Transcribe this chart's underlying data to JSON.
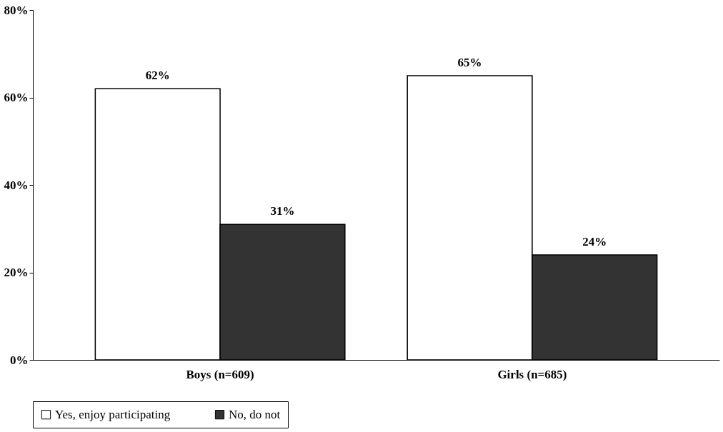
{
  "chart_data": {
    "type": "bar",
    "categories": [
      "Boys (n=609)",
      "Girls (n=685)"
    ],
    "series": [
      {
        "name": "Yes, enjoy participating",
        "color": "#ffffff",
        "values": [
          62,
          65
        ],
        "value_labels": [
          "62%",
          "65%"
        ]
      },
      {
        "name": "No, do not",
        "color": "#333333",
        "values": [
          31,
          24
        ],
        "value_labels": [
          "31%",
          "24%"
        ]
      }
    ],
    "ylim": [
      0,
      80
    ],
    "yticks": [
      {
        "value": 0,
        "label": "0%"
      },
      {
        "value": 20,
        "label": "20%"
      },
      {
        "value": 40,
        "label": "40%"
      },
      {
        "value": 60,
        "label": "60%"
      },
      {
        "value": 80,
        "label": "80%"
      }
    ],
    "grid": false,
    "legend": "bottom"
  }
}
